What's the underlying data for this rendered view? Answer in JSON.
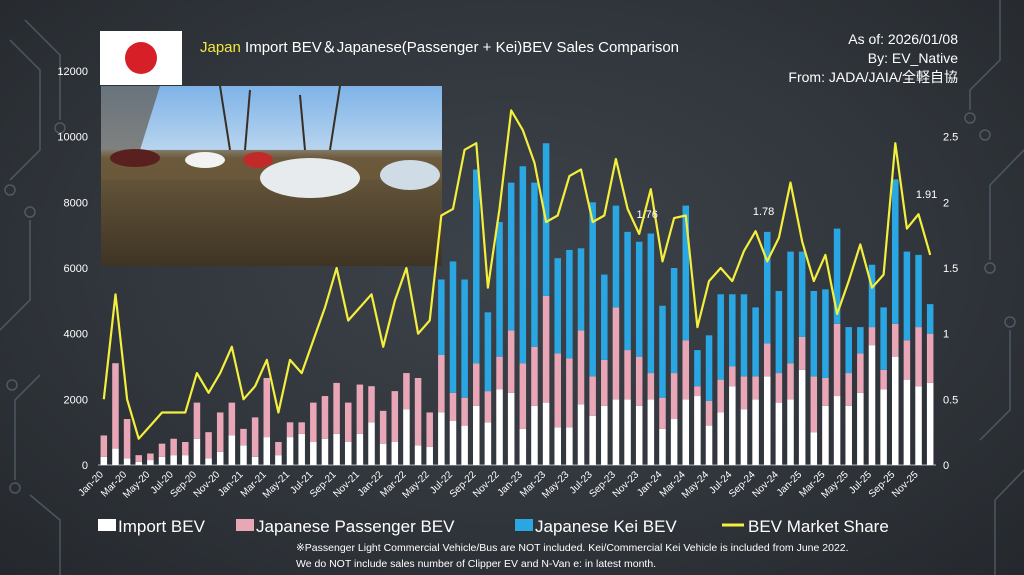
{
  "title": {
    "country": "Japan",
    "rest": " Import BEV＆Japanese(Passenger + Kei)BEV Sales Comparison"
  },
  "meta": {
    "as_of": "As of: 2026/01/08",
    "by": "By: EV_Native",
    "source": "From: JADA/JAIA/全軽自協"
  },
  "footnote": {
    "line1": "※Passenger Light Commercial Vehicle/Bus are NOT included. Kei/Commercial Kei Vehicle is included from June 2022.",
    "line2": "We do NOT include sales number of Clipper EV and N-Van e: in latest month."
  },
  "colors": {
    "import": "#ffffff",
    "passenger": "#e9a6b6",
    "kei": "#2aa6e2",
    "share": "#f4ee3c"
  },
  "chart_data": {
    "type": "bar",
    "stacked": true,
    "title": "Japan Import BEV＆Japanese(Passenger + Kei)BEV Sales Comparison",
    "ylim": [
      0,
      12000
    ],
    "y_ticks": [
      "0",
      "2000",
      "4000",
      "6000",
      "8000",
      "10000",
      "12000"
    ],
    "y2lim": [
      0,
      3
    ],
    "y2_ticks": [
      "0",
      "0.5",
      "1",
      "1.5",
      "2",
      "2.5"
    ],
    "grid": false,
    "legend": "bottom",
    "categories": [
      "Jan-20",
      "Feb-20",
      "Mar-20",
      "Apr-20",
      "May-20",
      "Jun-20",
      "Jul-20",
      "Aug-20",
      "Sep-20",
      "Oct-20",
      "Nov-20",
      "Dec-20",
      "Jan-21",
      "Feb-21",
      "Mar-21",
      "Apr-21",
      "May-21",
      "Jun-21",
      "Jul-21",
      "Aug-21",
      "Sep-21",
      "Oct-21",
      "Nov-21",
      "Dec-21",
      "Jan-22",
      "Feb-22",
      "Mar-22",
      "Apr-22",
      "May-22",
      "Jun-22",
      "Jul-22",
      "Aug-22",
      "Sep-22",
      "Oct-22",
      "Nov-22",
      "Dec-22",
      "Jan-23",
      "Feb-23",
      "Mar-23",
      "Apr-23",
      "May-23",
      "Jun-23",
      "Jul-23",
      "Aug-23",
      "Sep-23",
      "Oct-23",
      "Nov-23",
      "Dec-23",
      "Jan-24",
      "Feb-24",
      "Mar-24",
      "Apr-24",
      "May-24",
      "Jun-24",
      "Jul-24",
      "Aug-24",
      "Sep-24",
      "Oct-24",
      "Nov-24",
      "Dec-24",
      "Jan-25",
      "Feb-25",
      "Mar-25",
      "Apr-25",
      "May-25",
      "Jun-25",
      "Jul-25",
      "Aug-25",
      "Sep-25",
      "Oct-25",
      "Nov-25",
      "Dec-25"
    ],
    "x_tick_labels": [
      "Jan-20",
      "Mar-20",
      "May-20",
      "Jul-20",
      "Sep-20",
      "Nov-20",
      "Jan-21",
      "Mar-21",
      "May-21",
      "Jul-21",
      "Sep-21",
      "Nov-21",
      "Jan-22",
      "Mar-22",
      "May-22",
      "Jul-22",
      "Sep-22",
      "Nov-22",
      "Jan-23",
      "Mar-23",
      "May-23",
      "Jul-23",
      "Sep-23",
      "Nov-23",
      "Jan-24",
      "Mar-24",
      "May-24",
      "Jul-24",
      "Sep-24",
      "Nov-24",
      "Jan-25",
      "Mar-25",
      "May-25",
      "Jul-25",
      "Sep-25",
      "Nov-25"
    ],
    "series": [
      {
        "name": "Import BEV",
        "kind": "bar",
        "axis": "left",
        "values": [
          250,
          500,
          200,
          100,
          150,
          250,
          300,
          300,
          800,
          200,
          400,
          900,
          600,
          250,
          850,
          300,
          850,
          950,
          700,
          800,
          950,
          700,
          950,
          1300,
          650,
          700,
          1700,
          600,
          550,
          1600,
          1350,
          1200,
          1800,
          1300,
          2300,
          2200,
          1100,
          1800,
          1900,
          1150,
          1150,
          1850,
          1500,
          1800,
          2000,
          2000,
          1800,
          2000,
          1100,
          1400,
          2000,
          2100,
          1200,
          1600,
          2400,
          1700,
          2000,
          2700,
          1900,
          2000,
          2900,
          1000,
          1800,
          2100,
          1800,
          2200,
          3650,
          2300,
          3300,
          2600,
          2400,
          2500
        ]
      },
      {
        "name": "Japanese Passenger BEV",
        "kind": "bar",
        "axis": "left",
        "values": [
          650,
          2600,
          1200,
          200,
          200,
          400,
          500,
          400,
          1100,
          800,
          1200,
          1000,
          500,
          1200,
          1800,
          400,
          450,
          350,
          1200,
          1300,
          1550,
          1200,
          1500,
          1100,
          1000,
          1550,
          1100,
          2050,
          1050,
          1750,
          850,
          850,
          1300,
          950,
          1000,
          1900,
          2000,
          1800,
          3250,
          2250,
          2100,
          2250,
          1200,
          1400,
          2800,
          1500,
          1500,
          800,
          950,
          1400,
          1800,
          300,
          750,
          1000,
          600,
          1000,
          700,
          1000,
          900,
          1100,
          1000,
          1700,
          850,
          2200,
          1000,
          1200,
          550,
          600,
          1000,
          1200,
          1800,
          1500
        ]
      },
      {
        "name": "Japanese Kei BEV",
        "kind": "bar",
        "axis": "left",
        "values": [
          0,
          0,
          0,
          0,
          0,
          0,
          0,
          0,
          0,
          0,
          0,
          0,
          0,
          0,
          0,
          0,
          0,
          0,
          0,
          0,
          0,
          0,
          0,
          0,
          0,
          0,
          0,
          0,
          0,
          2300,
          4000,
          3600,
          5900,
          2400,
          4100,
          4500,
          6000,
          5000,
          4650,
          2900,
          3300,
          2500,
          5300,
          2600,
          3100,
          3600,
          3500,
          4250,
          2800,
          3200,
          4100,
          1100,
          2000,
          2600,
          2200,
          2500,
          2100,
          3400,
          2500,
          3400,
          2600,
          2600,
          2700,
          2900,
          1400,
          800,
          1900,
          1900,
          4400,
          2700,
          2200,
          900
        ]
      },
      {
        "name": "BEV Market Share",
        "kind": "line",
        "axis": "right",
        "values": [
          0.5,
          1.3,
          0.5,
          0.2,
          0.3,
          0.4,
          0.4,
          0.4,
          0.7,
          0.55,
          0.7,
          0.9,
          0.5,
          0.6,
          0.8,
          0.4,
          0.8,
          0.7,
          0.95,
          1.2,
          1.5,
          1.1,
          1.2,
          1.3,
          0.9,
          1.25,
          1.5,
          1.0,
          1.1,
          1.9,
          1.95,
          2.4,
          2.45,
          1.35,
          1.95,
          2.7,
          2.55,
          2.3,
          1.85,
          1.9,
          2.2,
          2.25,
          1.85,
          1.9,
          2.33,
          1.95,
          1.76,
          2.1,
          1.55,
          1.88,
          1.9,
          1.05,
          1.4,
          1.5,
          1.4,
          1.63,
          1.78,
          1.55,
          1.73,
          2.15,
          1.7,
          1.4,
          1.6,
          1.15,
          1.4,
          1.68,
          1.35,
          1.45,
          2.45,
          1.8,
          1.91,
          1.6
        ]
      }
    ],
    "annotations": [
      {
        "label": "1.76",
        "index": 46
      },
      {
        "label": "1.78",
        "index": 56
      },
      {
        "label": "1.91",
        "index": 70
      }
    ]
  }
}
